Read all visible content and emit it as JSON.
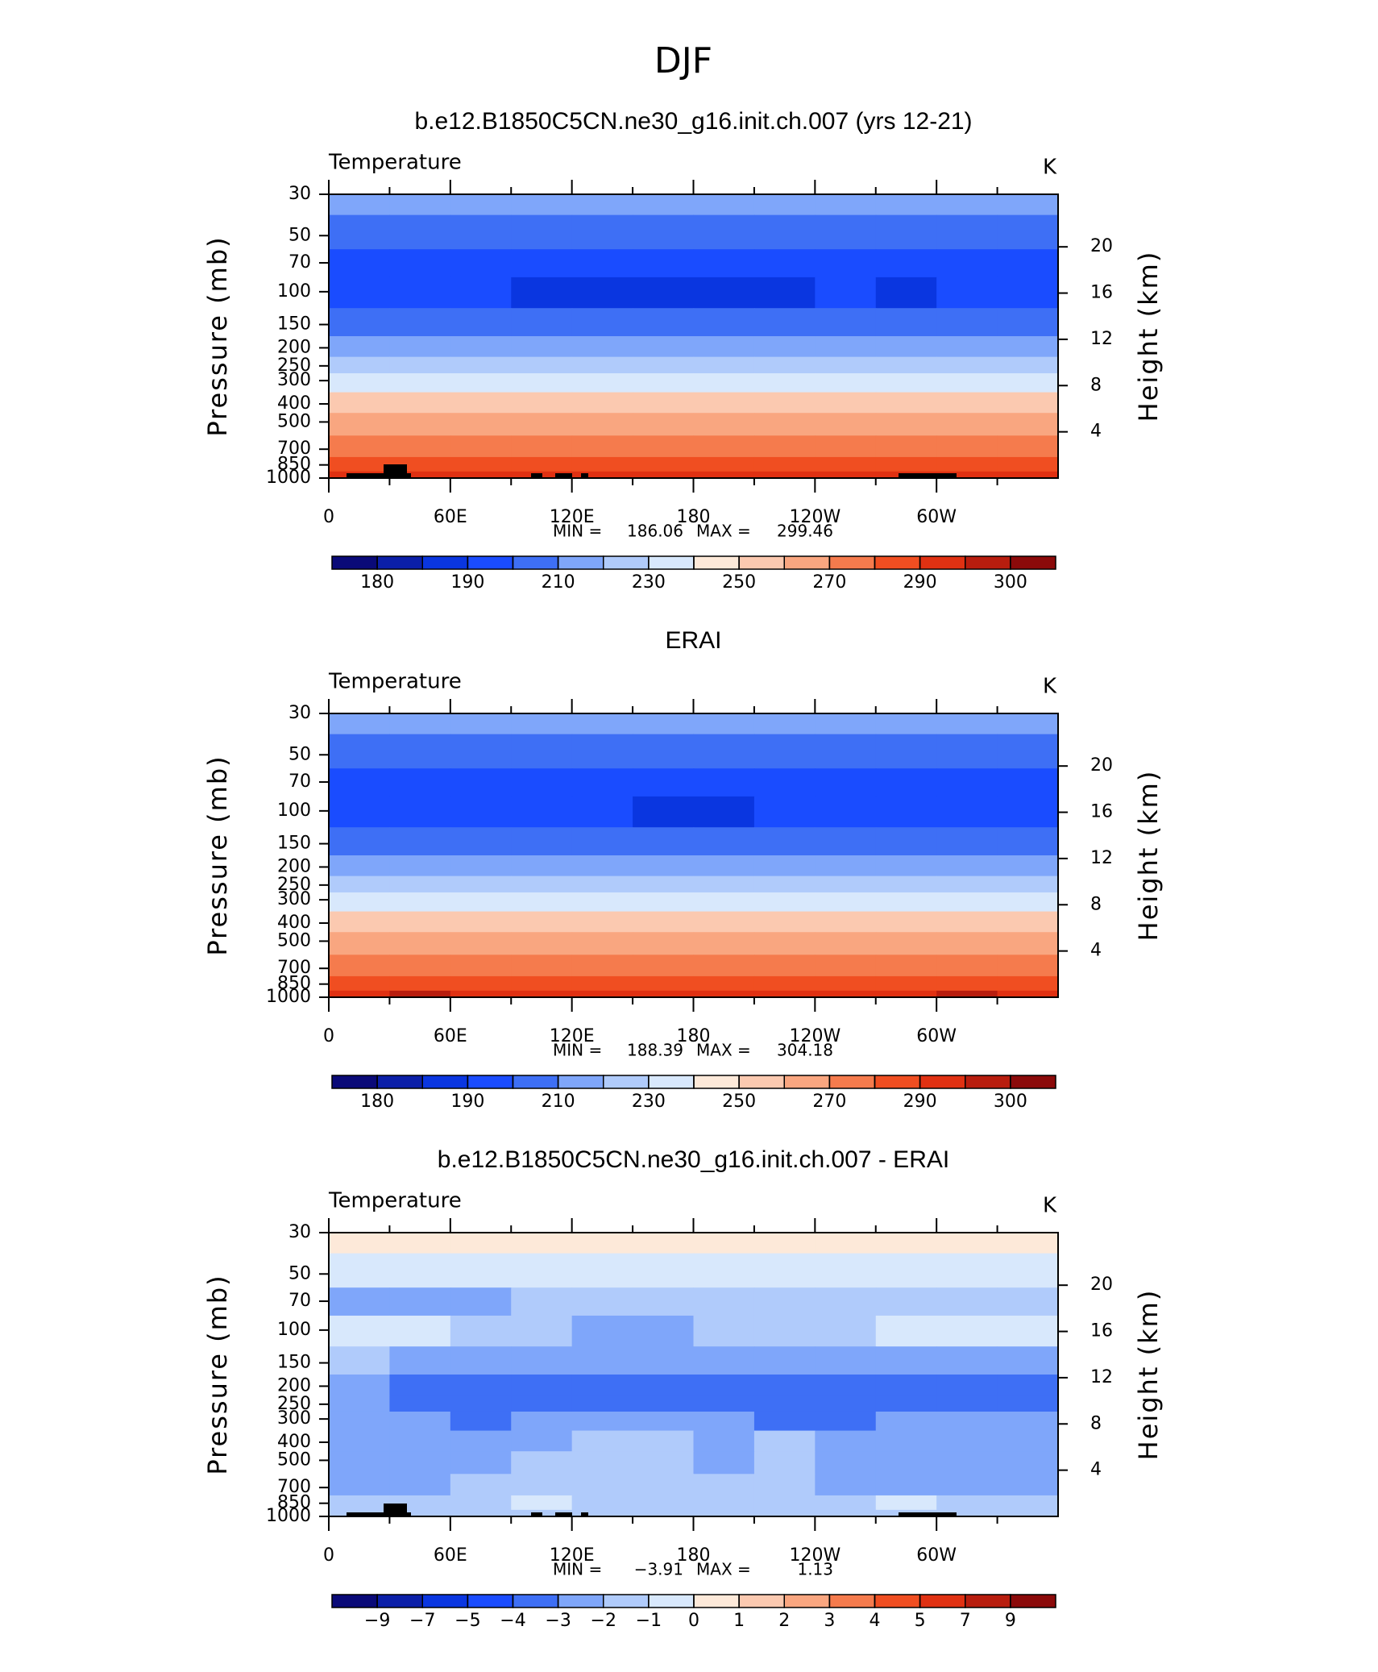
{
  "title": "DJF",
  "chart_data": [
    {
      "type": "contour",
      "title": "b.e12.B1850C5CN.ne30_g16.init.ch.007 (yrs 12-21)",
      "left_label": "Temperature",
      "units": "K",
      "ylabel": "Pressure (mb)",
      "y2label": "Height (km)",
      "xlim": [
        0,
        360
      ],
      "xticks": [
        0,
        {
          "value": 60,
          "label": "60E"
        },
        {
          "value": 120,
          "label": "120E"
        },
        180,
        {
          "value": 240,
          "label": "120W"
        },
        {
          "value": 300,
          "label": "60W"
        }
      ],
      "ylim": [
        1000,
        30
      ],
      "ylog": true,
      "yticks": [
        30,
        50,
        70,
        100,
        150,
        200,
        250,
        300,
        400,
        500,
        700,
        850,
        1000
      ],
      "y2ticks": [
        4,
        8,
        12,
        16,
        20
      ],
      "lon": [
        15,
        45,
        75,
        105,
        135,
        165,
        195,
        225,
        255,
        285,
        315,
        345
      ],
      "pressure": [
        30,
        50,
        70,
        100,
        150,
        200,
        250,
        300,
        400,
        500,
        700,
        850,
        1000
      ],
      "z": [
        [
          212,
          212,
          212,
          212,
          212,
          212,
          212,
          212,
          212,
          212,
          212,
          212
        ],
        [
          205,
          205,
          205,
          205,
          205,
          205,
          205,
          205,
          205,
          205,
          205,
          205
        ],
        [
          196,
          196,
          196,
          196,
          196,
          196,
          196,
          196,
          196,
          196,
          196,
          196
        ],
        [
          195,
          195,
          195,
          188,
          188,
          188,
          188,
          188,
          195,
          188,
          195,
          195
        ],
        [
          205,
          205,
          205,
          205,
          205,
          205,
          205,
          205,
          205,
          205,
          205,
          205
        ],
        [
          215,
          215,
          215,
          215,
          215,
          215,
          215,
          215,
          215,
          215,
          215,
          215
        ],
        [
          225,
          225,
          225,
          225,
          225,
          225,
          225,
          225,
          225,
          225,
          225,
          225
        ],
        [
          236,
          236,
          236,
          236,
          236,
          236,
          236,
          236,
          236,
          236,
          236,
          236
        ],
        [
          252,
          252,
          252,
          252,
          252,
          252,
          252,
          252,
          252,
          252,
          252,
          252
        ],
        [
          263,
          263,
          263,
          263,
          263,
          263,
          263,
          263,
          263,
          263,
          263,
          263
        ],
        [
          276,
          276,
          276,
          276,
          276,
          276,
          276,
          276,
          276,
          276,
          276,
          276
        ],
        [
          286,
          286,
          286,
          286,
          286,
          286,
          286,
          286,
          286,
          286,
          286,
          286
        ],
        [
          293,
          293,
          293,
          293,
          293,
          293,
          293,
          293,
          293,
          293,
          293,
          293
        ]
      ],
      "levels": [
        180,
        185,
        190,
        200,
        210,
        220,
        230,
        240,
        250,
        260,
        270,
        280,
        290,
        295,
        300
      ],
      "level_label_stride": 2,
      "colors": [
        "#0a0a78",
        "#0b1fa8",
        "#0a36e0",
        "#1a4cff",
        "#3e6ff5",
        "#7fa6fa",
        "#b0cbfb",
        "#d8e8fc",
        "#fde9d9",
        "#fbc9b0",
        "#f9a680",
        "#f57b4d",
        "#f04e21",
        "#e03112",
        "#b81d0e",
        "#8b0a0a"
      ],
      "stats_labels": [
        "MIN =",
        "MAX ="
      ],
      "stats": [
        186.06,
        299.46
      ]
    },
    {
      "type": "contour",
      "title": "ERAI",
      "left_label": "Temperature",
      "units": "K",
      "ylabel": "Pressure (mb)",
      "y2label": "Height (km)",
      "xlim": [
        0,
        360
      ],
      "xticks": [
        0,
        {
          "value": 60,
          "label": "60E"
        },
        {
          "value": 120,
          "label": "120E"
        },
        180,
        {
          "value": 240,
          "label": "120W"
        },
        {
          "value": 300,
          "label": "60W"
        }
      ],
      "ylim": [
        1000,
        30
      ],
      "ylog": true,
      "yticks": [
        30,
        50,
        70,
        100,
        150,
        200,
        250,
        300,
        400,
        500,
        700,
        850,
        1000
      ],
      "y2ticks": [
        4,
        8,
        12,
        16,
        20
      ],
      "lon": [
        15,
        45,
        75,
        105,
        135,
        165,
        195,
        225,
        255,
        285,
        315,
        345
      ],
      "pressure": [
        30,
        50,
        70,
        100,
        150,
        200,
        250,
        300,
        400,
        500,
        700,
        850,
        1000
      ],
      "z": [
        [
          212,
          212,
          212,
          212,
          212,
          212,
          212,
          212,
          212,
          212,
          212,
          212
        ],
        [
          205,
          205,
          205,
          205,
          205,
          205,
          205,
          205,
          205,
          205,
          205,
          205
        ],
        [
          196,
          196,
          196,
          196,
          196,
          196,
          196,
          196,
          196,
          196,
          196,
          196
        ],
        [
          195,
          195,
          195,
          195,
          195,
          188,
          188,
          195,
          195,
          195,
          195,
          195
        ],
        [
          205,
          205,
          205,
          205,
          205,
          205,
          205,
          205,
          205,
          205,
          205,
          205
        ],
        [
          215,
          215,
          215,
          215,
          215,
          215,
          215,
          215,
          215,
          215,
          215,
          215
        ],
        [
          225,
          225,
          225,
          225,
          225,
          225,
          225,
          225,
          225,
          225,
          225,
          225
        ],
        [
          236,
          236,
          236,
          236,
          236,
          236,
          236,
          236,
          236,
          236,
          236,
          236
        ],
        [
          252,
          252,
          252,
          252,
          252,
          252,
          252,
          252,
          252,
          252,
          252,
          252
        ],
        [
          263,
          263,
          263,
          263,
          263,
          263,
          263,
          263,
          263,
          263,
          263,
          263
        ],
        [
          276,
          276,
          276,
          276,
          276,
          276,
          276,
          276,
          276,
          276,
          276,
          276
        ],
        [
          287,
          287,
          287,
          287,
          287,
          287,
          287,
          287,
          287,
          287,
          287,
          287
        ],
        [
          293,
          296,
          293,
          293,
          293,
          293,
          293,
          293,
          293,
          293,
          296,
          293
        ]
      ],
      "levels": [
        180,
        185,
        190,
        200,
        210,
        220,
        230,
        240,
        250,
        260,
        270,
        280,
        290,
        295,
        300
      ],
      "level_label_stride": 2,
      "colors": [
        "#0a0a78",
        "#0b1fa8",
        "#0a36e0",
        "#1a4cff",
        "#3e6ff5",
        "#7fa6fa",
        "#b0cbfb",
        "#d8e8fc",
        "#fde9d9",
        "#fbc9b0",
        "#f9a680",
        "#f57b4d",
        "#f04e21",
        "#e03112",
        "#b81d0e",
        "#8b0a0a"
      ],
      "stats_labels": [
        "MIN =",
        "MAX ="
      ],
      "stats": [
        188.39,
        304.18
      ]
    },
    {
      "type": "contour",
      "title": "b.e12.B1850C5CN.ne30_g16.init.ch.007 - ERAI",
      "left_label": "Temperature",
      "units": "K",
      "ylabel": "Pressure (mb)",
      "y2label": "Height (km)",
      "xlim": [
        0,
        360
      ],
      "xticks": [
        0,
        {
          "value": 60,
          "label": "60E"
        },
        {
          "value": 120,
          "label": "120E"
        },
        180,
        {
          "value": 240,
          "label": "120W"
        },
        {
          "value": 300,
          "label": "60W"
        }
      ],
      "ylim": [
        1000,
        30
      ],
      "ylog": true,
      "yticks": [
        30,
        50,
        70,
        100,
        150,
        200,
        250,
        300,
        400,
        500,
        700,
        850,
        1000
      ],
      "y2ticks": [
        4,
        8,
        12,
        16,
        20
      ],
      "lon": [
        15,
        45,
        75,
        105,
        135,
        165,
        195,
        225,
        255,
        285,
        315,
        345
      ],
      "pressure": [
        30,
        50,
        70,
        100,
        150,
        200,
        250,
        300,
        400,
        500,
        700,
        850,
        1000
      ],
      "z": [
        [
          0.5,
          0.5,
          0.5,
          0.5,
          0.5,
          0.5,
          0.5,
          0.5,
          0.5,
          0.5,
          0.5,
          0.5
        ],
        [
          -0.5,
          -0.5,
          -0.5,
          -0.5,
          -0.5,
          -0.5,
          -0.5,
          -0.5,
          -0.5,
          -0.5,
          -0.5,
          -0.5
        ],
        [
          -2.5,
          -2.5,
          -2.5,
          -1.5,
          -1.5,
          -1.5,
          -1.5,
          -1.5,
          -1.5,
          -1.5,
          -1.5,
          -1.5
        ],
        [
          -0.5,
          -0.5,
          -1.5,
          -1.5,
          -2.5,
          -2.5,
          -1.5,
          -1.5,
          -1.5,
          -0.5,
          -0.5,
          -0.5
        ],
        [
          -1.5,
          -2.5,
          -2.5,
          -2.5,
          -2.5,
          -2.5,
          -2.5,
          -2.5,
          -2.5,
          -2.5,
          -2.5,
          -2.5
        ],
        [
          -2.5,
          -3.5,
          -3.5,
          -3.5,
          -3.5,
          -3.5,
          -3.5,
          -3.5,
          -3.5,
          -3.5,
          -3.5,
          -3.5
        ],
        [
          -2.5,
          -3.5,
          -3.5,
          -3.5,
          -3.5,
          -3.5,
          -3.5,
          -3.5,
          -3.5,
          -3.5,
          -3.5,
          -3.5
        ],
        [
          -2.5,
          -2.5,
          -3.5,
          -2.5,
          -2.5,
          -2.5,
          -2.5,
          -3.5,
          -3.5,
          -2.5,
          -2.5,
          -2.5
        ],
        [
          -2.5,
          -2.5,
          -2.5,
          -2.5,
          -1.5,
          -1.5,
          -2.5,
          -1.5,
          -2.5,
          -2.5,
          -2.5,
          -2.5
        ],
        [
          -2.5,
          -2.5,
          -2.5,
          -1.5,
          -1.5,
          -1.5,
          -2.5,
          -1.5,
          -2.5,
          -2.5,
          -2.5,
          -2.5
        ],
        [
          -2.5,
          -2.5,
          -1.5,
          -1.5,
          -1.5,
          -1.5,
          -1.5,
          -1.5,
          -2.5,
          -2.5,
          -2.5,
          -2.5
        ],
        [
          -1.5,
          -1.5,
          -1.5,
          -0.5,
          -1.5,
          -1.5,
          -1.5,
          -1.5,
          -1.5,
          -0.5,
          -1.5,
          -1.5
        ],
        [
          -1.5,
          -1.5,
          -1.5,
          -1.5,
          -1.5,
          -1.5,
          -1.5,
          -1.5,
          -1.5,
          -1.5,
          -1.5,
          -1.5
        ]
      ],
      "levels": [
        {
          "value": -9,
          "label": "−9"
        },
        {
          "value": -7,
          "label": "−7"
        },
        {
          "value": -5,
          "label": "−5"
        },
        {
          "value": -4,
          "label": "−4"
        },
        {
          "value": -3,
          "label": "−3"
        },
        {
          "value": -2,
          "label": "−2"
        },
        {
          "value": -1,
          "label": "−1"
        },
        0,
        1,
        2,
        3,
        4,
        5,
        7,
        9
      ],
      "level_label_stride": 1,
      "colors": [
        "#0a0a78",
        "#0b1fa8",
        "#0a36e0",
        "#1a4cff",
        "#3e6ff5",
        "#7fa6fa",
        "#b0cbfb",
        "#d8e8fc",
        "#fde9d9",
        "#fbc9b0",
        "#f9a680",
        "#f57b4d",
        "#f04e21",
        "#e03112",
        "#b81d0e",
        "#8b0a0a"
      ],
      "stats_labels": [
        "MIN =",
        "MAX ="
      ],
      "stats": [
        -3.91,
        1.13
      ],
      "stats_value_labels": [
        "−3.91",
        "1.13"
      ]
    }
  ]
}
